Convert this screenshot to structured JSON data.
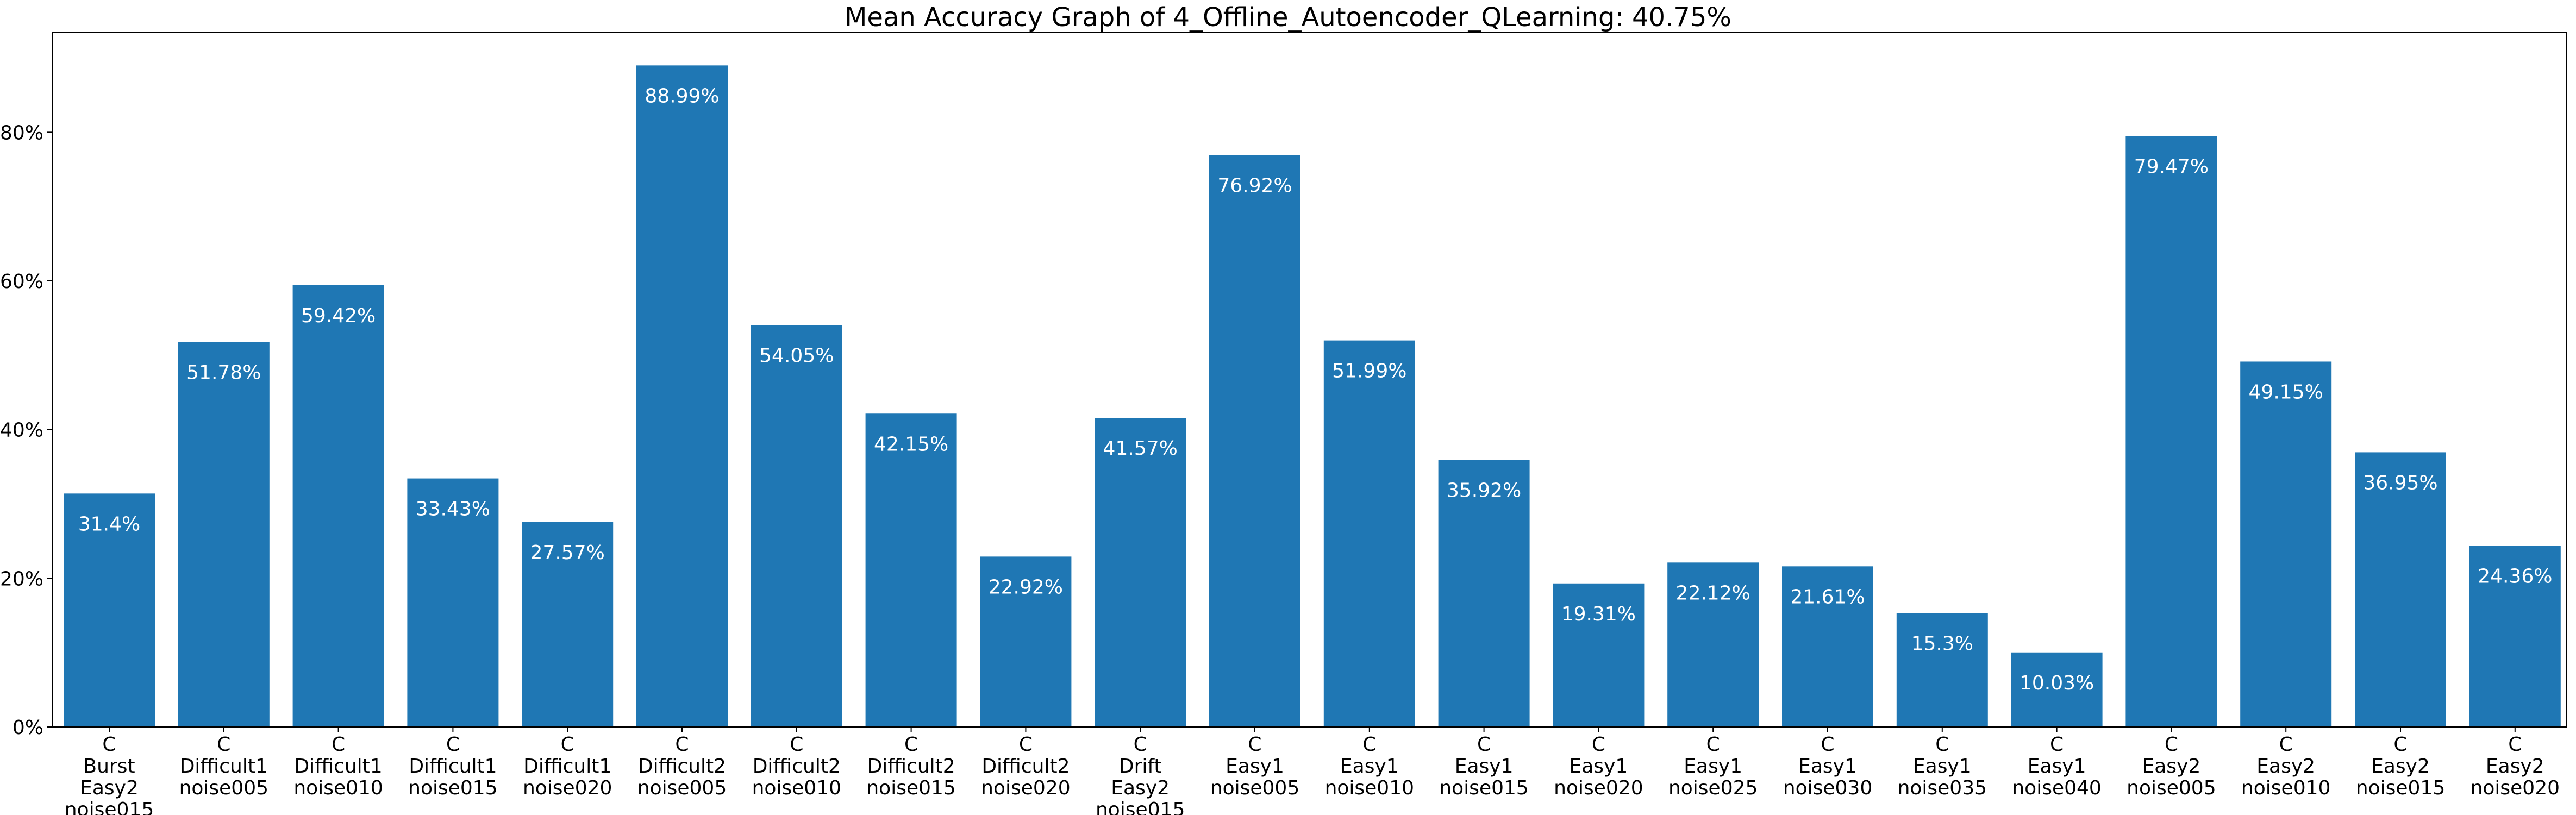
{
  "chart_data": {
    "type": "bar",
    "title": "Mean Accuracy Graph of 4_Offline_Autoencoder_QLearning: 40.75%",
    "xlabel": "",
    "ylabel": "",
    "ylim": [
      0,
      93.4
    ],
    "y_ticks": [
      0,
      20,
      40,
      60,
      80
    ],
    "y_tick_labels": [
      "0%",
      "20%",
      "40%",
      "60%",
      "80%"
    ],
    "categories": [
      [
        "C",
        "Burst",
        "Easy2",
        "noise015"
      ],
      [
        "C",
        "Difficult1",
        "noise005"
      ],
      [
        "C",
        "Difficult1",
        "noise010"
      ],
      [
        "C",
        "Difficult1",
        "noise015"
      ],
      [
        "C",
        "Difficult1",
        "noise020"
      ],
      [
        "C",
        "Difficult2",
        "noise005"
      ],
      [
        "C",
        "Difficult2",
        "noise010"
      ],
      [
        "C",
        "Difficult2",
        "noise015"
      ],
      [
        "C",
        "Difficult2",
        "noise020"
      ],
      [
        "C",
        "Drift",
        "Easy2",
        "noise015"
      ],
      [
        "C",
        "Easy1",
        "noise005"
      ],
      [
        "C",
        "Easy1",
        "noise010"
      ],
      [
        "C",
        "Easy1",
        "noise015"
      ],
      [
        "C",
        "Easy1",
        "noise020"
      ],
      [
        "C",
        "Easy1",
        "noise025"
      ],
      [
        "C",
        "Easy1",
        "noise030"
      ],
      [
        "C",
        "Easy1",
        "noise035"
      ],
      [
        "C",
        "Easy1",
        "noise040"
      ],
      [
        "C",
        "Easy2",
        "noise005"
      ],
      [
        "C",
        "Easy2",
        "noise010"
      ],
      [
        "C",
        "Easy2",
        "noise015"
      ],
      [
        "C",
        "Easy2",
        "noise020"
      ]
    ],
    "values": [
      31.4,
      51.78,
      59.42,
      33.43,
      27.57,
      88.99,
      54.05,
      42.15,
      22.92,
      41.57,
      76.92,
      51.99,
      35.92,
      19.31,
      22.12,
      21.61,
      15.3,
      10.03,
      79.47,
      49.15,
      36.95,
      24.36
    ],
    "value_labels": [
      "31.4%",
      "51.78%",
      "59.42%",
      "33.43%",
      "27.57%",
      "88.99%",
      "54.05%",
      "42.15%",
      "22.92%",
      "41.57%",
      "76.92%",
      "51.99%",
      "35.92%",
      "19.31%",
      "22.12%",
      "21.61%",
      "15.3%",
      "10.03%",
      "79.47%",
      "49.15%",
      "36.95%",
      "24.36%"
    ],
    "bar_color": "#1f77b4",
    "label_color": "#ffffff",
    "grid": false,
    "legend": "none"
  }
}
